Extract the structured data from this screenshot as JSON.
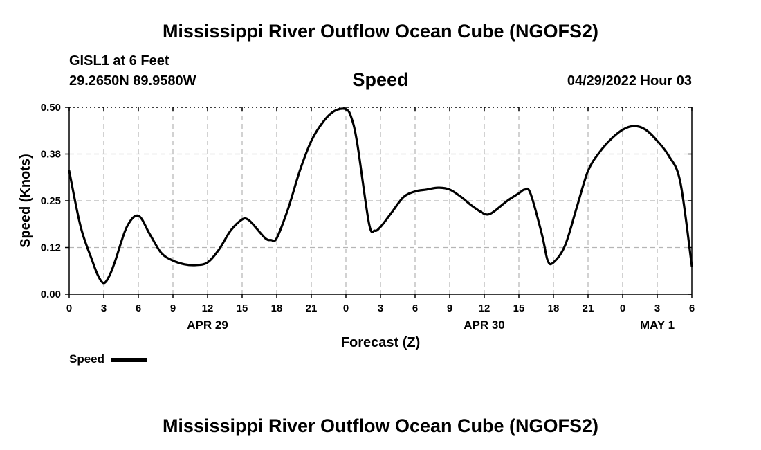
{
  "title": "Mississippi River Outflow Ocean Cube (NGOFS2)",
  "station": "GISL1 at 6 Feet",
  "coords": "29.2650N  89.9580W",
  "subtitle": "Speed",
  "datetime": "04/29/2022 Hour 03",
  "legend": {
    "label": "Speed",
    "color": "#000000"
  },
  "footer_title": "Mississippi River Outflow Ocean Cube (NGOFS2)",
  "chart_data": {
    "type": "line",
    "title": "Speed",
    "xlabel": "Forecast (Z)",
    "ylabel": "Speed (Knots)",
    "xlim": [
      0,
      54
    ],
    "ylim": [
      0,
      0.5
    ],
    "grid": true,
    "legend_position": "bottom-left",
    "y_ticks": [
      {
        "v": 0.0,
        "label": "0.00"
      },
      {
        "v": 0.125,
        "label": "0.12"
      },
      {
        "v": 0.25,
        "label": "0.25"
      },
      {
        "v": 0.375,
        "label": "0.38"
      },
      {
        "v": 0.5,
        "label": "0.50"
      }
    ],
    "x_ticks": [
      {
        "v": 0,
        "label": "0"
      },
      {
        "v": 3,
        "label": "3"
      },
      {
        "v": 6,
        "label": "6"
      },
      {
        "v": 9,
        "label": "9"
      },
      {
        "v": 12,
        "label": "12"
      },
      {
        "v": 15,
        "label": "15"
      },
      {
        "v": 18,
        "label": "18"
      },
      {
        "v": 21,
        "label": "21"
      },
      {
        "v": 24,
        "label": "0"
      },
      {
        "v": 27,
        "label": "3"
      },
      {
        "v": 30,
        "label": "6"
      },
      {
        "v": 33,
        "label": "9"
      },
      {
        "v": 36,
        "label": "12"
      },
      {
        "v": 39,
        "label": "15"
      },
      {
        "v": 42,
        "label": "18"
      },
      {
        "v": 45,
        "label": "21"
      },
      {
        "v": 48,
        "label": "0"
      },
      {
        "v": 51,
        "label": "3"
      },
      {
        "v": 54,
        "label": "6"
      }
    ],
    "date_labels": [
      {
        "v": 12,
        "label": "APR 29"
      },
      {
        "v": 36,
        "label": "APR 30"
      },
      {
        "v": 51,
        "label": "MAY 1"
      }
    ],
    "series": [
      {
        "name": "Speed",
        "color": "#000000",
        "x": [
          0,
          1,
          2,
          2.5,
          3,
          3.5,
          4,
          5,
          6,
          7,
          8,
          9,
          10,
          11,
          12,
          13,
          14,
          15,
          15.5,
          16,
          17,
          17.5,
          18,
          19,
          20,
          21,
          22,
          23,
          24,
          24.5,
          25,
          26,
          26.5,
          27,
          28,
          29,
          30,
          31,
          32,
          33,
          34,
          35,
          36,
          36.5,
          37,
          38,
          39,
          39.5,
          40,
          41,
          41.5,
          42,
          43,
          44,
          45,
          46,
          47,
          48,
          49,
          50,
          51,
          52,
          53,
          54
        ],
        "y": [
          0.33,
          0.18,
          0.09,
          0.05,
          0.03,
          0.05,
          0.09,
          0.18,
          0.21,
          0.16,
          0.11,
          0.09,
          0.08,
          0.078,
          0.085,
          0.12,
          0.17,
          0.2,
          0.2,
          0.185,
          0.15,
          0.145,
          0.15,
          0.23,
          0.33,
          0.41,
          0.46,
          0.49,
          0.495,
          0.47,
          0.4,
          0.19,
          0.17,
          0.18,
          0.22,
          0.26,
          0.275,
          0.28,
          0.285,
          0.28,
          0.26,
          0.235,
          0.215,
          0.215,
          0.225,
          0.25,
          0.27,
          0.28,
          0.27,
          0.16,
          0.09,
          0.085,
          0.13,
          0.23,
          0.33,
          0.38,
          0.415,
          0.44,
          0.45,
          0.44,
          0.41,
          0.37,
          0.3,
          0.075
        ]
      }
    ]
  }
}
